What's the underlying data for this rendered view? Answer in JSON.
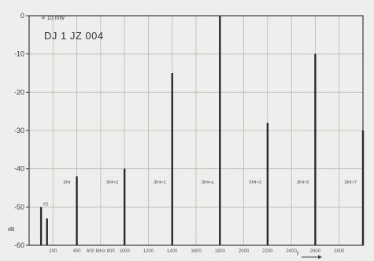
{
  "chart_data": {
    "type": "bar",
    "title": "DJ 1 JZ  004",
    "reference_label": "≙ 10 mW",
    "ylabel": "dB",
    "ylim": [
      -60,
      0
    ],
    "yticks": [
      0,
      -10,
      -20,
      -30,
      -40,
      -50,
      -60
    ],
    "ytick_labels": [
      "0",
      "-10",
      "-20",
      "-30",
      "-40",
      "-50",
      "-60"
    ],
    "xticks": [
      "200",
      "400",
      "600 MHz 800",
      "1000",
      "1200",
      "1400",
      "1600",
      "1800",
      "2000",
      "2200",
      "2400",
      "2600",
      "2800"
    ],
    "x_arrow_label": "f",
    "bars": [
      {
        "freq": 100,
        "value": -50,
        "label": "f/2"
      },
      {
        "freq": 150,
        "value": -53,
        "label": ""
      },
      {
        "freq": 400,
        "value": -42,
        "label": "3f/4"
      },
      {
        "freq": 800,
        "value": -40,
        "label": "3f/4+2"
      },
      {
        "freq": 1200,
        "value": -15,
        "label": "3f/4+1"
      },
      {
        "freq": 1600,
        "value": 0,
        "label": "3f/4+a"
      },
      {
        "freq": 2000,
        "value": -28,
        "label": "3f/4+3"
      },
      {
        "freq": 2400,
        "value": -10,
        "label": "3f/4+5"
      },
      {
        "freq": 2800,
        "value": -30,
        "label": "3f/4+7"
      }
    ]
  }
}
